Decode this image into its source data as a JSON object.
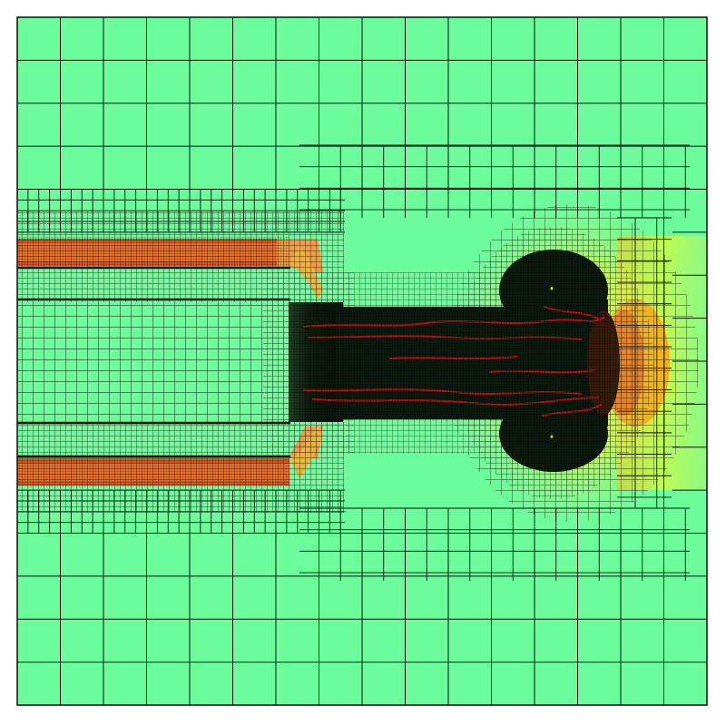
{
  "figure": {
    "kind": "adaptive-mesh-refinement-field",
    "colormap": {
      "background": "#6cfc9c",
      "mid": "#a4f872",
      "high": "#f2fc1e",
      "hot": "#f9ac10",
      "jet": "#f76f21",
      "jet_edge": "#e2541a",
      "core": "#0c1a10",
      "core_light": "#22401e",
      "filament": "#c41010",
      "mesh_line": "#0a140a"
    }
  }
}
